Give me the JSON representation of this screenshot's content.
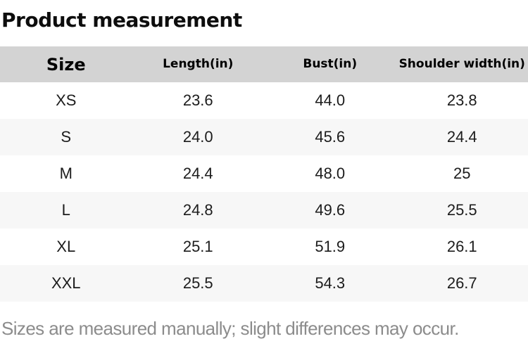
{
  "page": {
    "title": "Product measurement",
    "footnote": "Sizes are measured manually; slight differences may occur."
  },
  "table": {
    "columns": [
      "Size",
      "Length(in)",
      "Bust(in)",
      "Shoulder width(in)"
    ],
    "rows": [
      [
        "XS",
        "23.6",
        "44.0",
        "23.8"
      ],
      [
        "S",
        "24.0",
        "45.6",
        "24.4"
      ],
      [
        "M",
        "24.4",
        "48.0",
        "25"
      ],
      [
        "L",
        "24.8",
        "49.6",
        "25.5"
      ],
      [
        "XL",
        "25.1",
        "51.9",
        "26.1"
      ],
      [
        "XXL",
        "25.5",
        "54.3",
        "26.7"
      ]
    ]
  },
  "colors": {
    "header_bg": "#d3d3d3",
    "alt_row_bg": "#f7f7f7",
    "row_bg": "#ffffff",
    "text": "#1c1c1c",
    "heading_text": "#0d0d0d",
    "footnote_text": "#8c8c8c"
  }
}
